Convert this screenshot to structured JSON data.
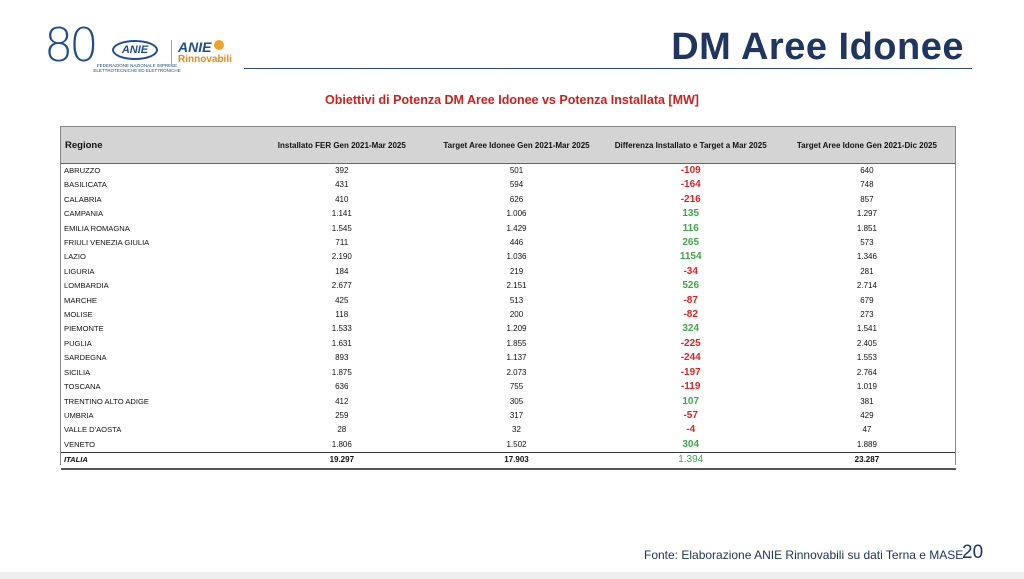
{
  "logo": {
    "number": "80",
    "anie": "ANIE",
    "federation_text": "FEDERAZIONE NAZIONALE IMPRESE ELETTROTECNICHE ED ELETTRONICHE",
    "anie2": "ANIE",
    "rinnovabili": "Rinnovabili"
  },
  "title": "DM Aree Idonee",
  "subtitle": "Obiettivi di Potenza DM Aree Idonee vs Potenza Installata [MW]",
  "table": {
    "headers": [
      "Regione",
      "Installato  FER Gen 2021-Mar 2025",
      "Target Aree Idonee Gen 2021-Mar 2025",
      "Differenza Installato e Target a Mar 2025",
      "Target Aree Idone Gen 2021-Dic 2025"
    ],
    "rows": [
      {
        "regione": "ABRUZZO",
        "installato": "392",
        "target_mar": "501",
        "differenza": "-109",
        "target_dic": "640",
        "sign": "neg"
      },
      {
        "regione": "BASILICATA",
        "installato": "431",
        "target_mar": "594",
        "differenza": "-164",
        "target_dic": "748",
        "sign": "neg"
      },
      {
        "regione": "CALABRIA",
        "installato": "410",
        "target_mar": "626",
        "differenza": "-216",
        "target_dic": "857",
        "sign": "neg"
      },
      {
        "regione": "CAMPANIA",
        "installato": "1.141",
        "target_mar": "1.006",
        "differenza": "135",
        "target_dic": "1.297",
        "sign": "pos"
      },
      {
        "regione": "EMILIA ROMAGNA",
        "installato": "1.545",
        "target_mar": "1.429",
        "differenza": "116",
        "target_dic": "1.851",
        "sign": "pos"
      },
      {
        "regione": "FRIULI VENEZIA GIULIA",
        "installato": "711",
        "target_mar": "446",
        "differenza": "265",
        "target_dic": "573",
        "sign": "pos"
      },
      {
        "regione": "LAZIO",
        "installato": "2.190",
        "target_mar": "1.036",
        "differenza": "1154",
        "target_dic": "1.346",
        "sign": "pos"
      },
      {
        "regione": "LIGURIA",
        "installato": "184",
        "target_mar": "219",
        "differenza": "-34",
        "target_dic": "281",
        "sign": "neg"
      },
      {
        "regione": "LOMBARDIA",
        "installato": "2.677",
        "target_mar": "2.151",
        "differenza": "526",
        "target_dic": "2.714",
        "sign": "pos"
      },
      {
        "regione": "MARCHE",
        "installato": "425",
        "target_mar": "513",
        "differenza": "-87",
        "target_dic": "679",
        "sign": "neg"
      },
      {
        "regione": "MOLISE",
        "installato": "118",
        "target_mar": "200",
        "differenza": "-82",
        "target_dic": "273",
        "sign": "neg"
      },
      {
        "regione": "PIEMONTE",
        "installato": "1.533",
        "target_mar": "1.209",
        "differenza": "324",
        "target_dic": "1.541",
        "sign": "pos"
      },
      {
        "regione": "PUGLIA",
        "installato": "1.631",
        "target_mar": "1.855",
        "differenza": "-225",
        "target_dic": "2.405",
        "sign": "neg"
      },
      {
        "regione": "SARDEGNA",
        "installato": "893",
        "target_mar": "1.137",
        "differenza": "-244",
        "target_dic": "1.553",
        "sign": "neg"
      },
      {
        "regione": "SICILIA",
        "installato": "1.875",
        "target_mar": "2.073",
        "differenza": "-197",
        "target_dic": "2.764",
        "sign": "neg"
      },
      {
        "regione": "TOSCANA",
        "installato": "636",
        "target_mar": "755",
        "differenza": "-119",
        "target_dic": "1.019",
        "sign": "neg"
      },
      {
        "regione": "TRENTINO ALTO ADIGE",
        "installato": "412",
        "target_mar": "305",
        "differenza": "107",
        "target_dic": "381",
        "sign": "pos"
      },
      {
        "regione": "UMBRIA",
        "installato": "259",
        "target_mar": "317",
        "differenza": "-57",
        "target_dic": "429",
        "sign": "neg"
      },
      {
        "regione": "VALLE D'AOSTA",
        "installato": "28",
        "target_mar": "32",
        "differenza": "-4",
        "target_dic": "47",
        "sign": "neg"
      },
      {
        "regione": "VENETO",
        "installato": "1.806",
        "target_mar": "1.502",
        "differenza": "304",
        "target_dic": "1.889",
        "sign": "pos"
      }
    ],
    "total": {
      "regione": "ITALIA",
      "installato": "19.297",
      "target_mar": "17.903",
      "differenza": "1.394",
      "target_dic": "23.287"
    }
  },
  "colors": {
    "negative": "#e02121",
    "positive": "#3fa64a",
    "title": "#1f3660",
    "subtitle": "#d0201b"
  },
  "footer": {
    "source": "Fonte: Elaborazione ANIE Rinnovabili su dati Terna e MASE",
    "page_number": "20"
  }
}
